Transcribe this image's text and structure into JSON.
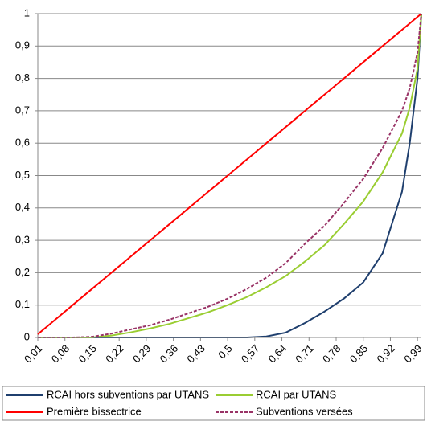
{
  "chart_data": {
    "type": "line",
    "x": [
      0.01,
      0.1,
      0.15,
      0.2,
      0.25,
      0.3,
      0.35,
      0.4,
      0.45,
      0.5,
      0.55,
      0.6,
      0.65,
      0.7,
      0.75,
      0.8,
      0.85,
      0.9,
      0.95,
      0.97,
      0.99,
      1.0
    ],
    "series": [
      {
        "name": "RCAI hors subventions par UTANS",
        "color": "#1f3f6e",
        "dashed": false,
        "values": [
          0,
          0,
          0,
          0,
          0,
          0,
          0,
          0,
          0,
          0,
          0,
          0.003,
          0.015,
          0.045,
          0.08,
          0.12,
          0.17,
          0.26,
          0.45,
          0.6,
          0.8,
          1
        ]
      },
      {
        "name": "RCAI par UTANS",
        "color": "#9acd32",
        "dashed": false,
        "values": [
          0,
          0,
          0,
          0.006,
          0.016,
          0.028,
          0.042,
          0.06,
          0.078,
          0.1,
          0.125,
          0.155,
          0.19,
          0.235,
          0.285,
          0.35,
          0.42,
          0.51,
          0.63,
          0.71,
          0.83,
          1
        ]
      },
      {
        "name": "Première bissectrice",
        "color": "#ff0000",
        "dashed": false,
        "values": [
          0.01,
          0.1,
          0.15,
          0.2,
          0.25,
          0.3,
          0.35,
          0.4,
          0.45,
          0.5,
          0.55,
          0.6,
          0.65,
          0.7,
          0.75,
          0.8,
          0.85,
          0.9,
          0.95,
          0.97,
          0.99,
          1.0
        ]
      },
      {
        "name": "Subventions versées",
        "color": "#993366",
        "dashed": true,
        "values": [
          0,
          0,
          0.002,
          0.012,
          0.025,
          0.038,
          0.055,
          0.075,
          0.095,
          0.12,
          0.15,
          0.185,
          0.23,
          0.29,
          0.345,
          0.415,
          0.49,
          0.585,
          0.7,
          0.77,
          0.88,
          1
        ]
      }
    ],
    "xlim": [
      0.01,
      1.0
    ],
    "xticks": [
      {
        "value": 0.01,
        "label": "0,01"
      },
      {
        "value": 0.08,
        "label": "0,08"
      },
      {
        "value": 0.15,
        "label": "0,15"
      },
      {
        "value": 0.22,
        "label": "0,22"
      },
      {
        "value": 0.29,
        "label": "0,29"
      },
      {
        "value": 0.36,
        "label": "0,36"
      },
      {
        "value": 0.43,
        "label": "0,43"
      },
      {
        "value": 0.5,
        "label": "0,5"
      },
      {
        "value": 0.57,
        "label": "0,57"
      },
      {
        "value": 0.64,
        "label": "0,64"
      },
      {
        "value": 0.71,
        "label": "0,71"
      },
      {
        "value": 0.78,
        "label": "0,78"
      },
      {
        "value": 0.85,
        "label": "0,85"
      },
      {
        "value": 0.92,
        "label": "0,92"
      },
      {
        "value": 0.99,
        "label": "0,99"
      }
    ],
    "ylim": [
      0,
      1
    ],
    "yticks": [
      0,
      {
        "value": 0.1,
        "label": "0,1"
      },
      {
        "value": 0.2,
        "label": "0,2"
      },
      {
        "value": 0.3,
        "label": "0,3"
      },
      {
        "value": 0.4,
        "label": "0,4"
      },
      {
        "value": 0.5,
        "label": "0,5"
      },
      {
        "value": 0.6,
        "label": "0,6"
      },
      {
        "value": 0.7,
        "label": "0,7"
      },
      {
        "value": 0.8,
        "label": "0,8"
      },
      {
        "value": 0.9,
        "label": "0,9"
      },
      1
    ],
    "grid": true
  }
}
